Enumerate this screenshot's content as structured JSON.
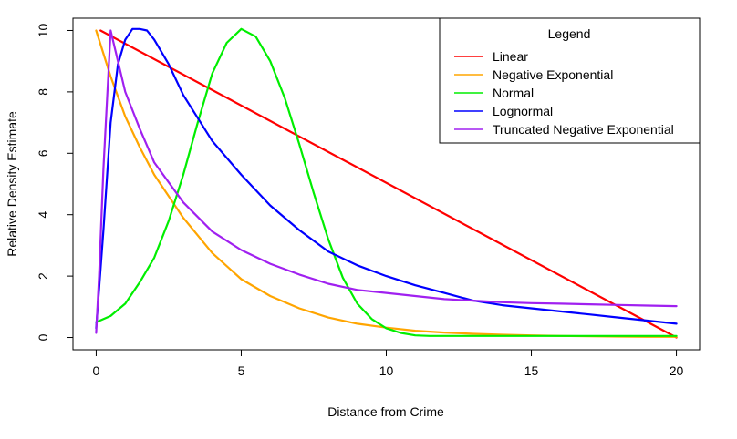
{
  "chart_data": {
    "type": "line",
    "title": "",
    "xlabel": "Distance from Crime",
    "ylabel": "Relative Density Estimate",
    "xlim": [
      -0.8,
      20.8
    ],
    "ylim": [
      -0.4,
      10.4
    ],
    "xticks": [
      0,
      5,
      10,
      15,
      20
    ],
    "yticks": [
      0,
      2,
      4,
      6,
      8,
      10
    ],
    "grid": false,
    "legend": {
      "title": "Legend",
      "position": "top-right"
    },
    "series": [
      {
        "name": "Linear",
        "color": "#ff0000",
        "x": [
          0.15,
          20
        ],
        "y": [
          10,
          0
        ]
      },
      {
        "name": "Negative Exponential",
        "color": "#ffa500",
        "x": [
          0,
          0.5,
          1,
          1.5,
          2,
          3,
          4,
          5,
          6,
          7,
          8,
          9,
          10,
          11,
          12,
          13,
          14,
          15,
          16,
          17,
          18,
          19,
          20
        ],
        "y": [
          10,
          8.5,
          7.2,
          6.2,
          5.3,
          3.9,
          2.75,
          1.9,
          1.35,
          0.95,
          0.65,
          0.45,
          0.32,
          0.22,
          0.16,
          0.12,
          0.09,
          0.07,
          0.05,
          0.04,
          0.03,
          0.02,
          0.02
        ]
      },
      {
        "name": "Normal",
        "color": "#00ee00",
        "x": [
          0,
          0.5,
          1,
          1.5,
          2,
          2.5,
          3,
          3.5,
          4,
          4.5,
          5,
          5.5,
          6,
          6.5,
          7,
          7.5,
          8,
          8.5,
          9,
          9.5,
          10,
          10.5,
          11,
          11.5,
          12,
          13,
          14,
          15,
          16,
          17,
          18,
          19,
          20
        ],
        "y": [
          0.5,
          0.7,
          1.1,
          1.8,
          2.6,
          3.8,
          5.3,
          7.0,
          8.6,
          9.6,
          10.05,
          9.8,
          9.0,
          7.8,
          6.3,
          4.7,
          3.2,
          1.95,
          1.1,
          0.6,
          0.3,
          0.15,
          0.07,
          0.05,
          0.05,
          0.05,
          0.05,
          0.05,
          0.05,
          0.05,
          0.05,
          0.05,
          0.05
        ]
      },
      {
        "name": "Lognormal",
        "color": "#0000ff",
        "x": [
          0,
          0.25,
          0.5,
          0.75,
          1,
          1.25,
          1.5,
          1.75,
          2,
          2.5,
          3,
          4,
          5,
          6,
          7,
          8,
          9,
          10,
          11,
          12,
          13,
          14,
          15,
          16,
          17,
          18,
          19,
          20
        ],
        "y": [
          0.3,
          3.5,
          7.0,
          8.9,
          9.7,
          10.05,
          10.05,
          10.0,
          9.7,
          8.9,
          7.9,
          6.4,
          5.3,
          4.3,
          3.5,
          2.8,
          2.35,
          2.0,
          1.7,
          1.45,
          1.2,
          1.05,
          0.95,
          0.85,
          0.75,
          0.65,
          0.55,
          0.45
        ]
      },
      {
        "name": "Truncated Negative Exponential",
        "color": "#a020f0",
        "x": [
          0,
          0.1,
          0.25,
          0.5,
          0.75,
          1,
          1.5,
          2,
          3,
          4,
          5,
          6,
          7,
          8,
          9,
          10,
          11,
          12,
          13,
          14,
          15,
          16,
          17,
          18,
          19,
          20
        ],
        "y": [
          0.15,
          2.0,
          5.5,
          10.0,
          9.0,
          8.0,
          6.8,
          5.7,
          4.4,
          3.45,
          2.85,
          2.4,
          2.05,
          1.75,
          1.55,
          1.45,
          1.35,
          1.25,
          1.2,
          1.15,
          1.12,
          1.1,
          1.08,
          1.06,
          1.04,
          1.02
        ]
      }
    ]
  }
}
